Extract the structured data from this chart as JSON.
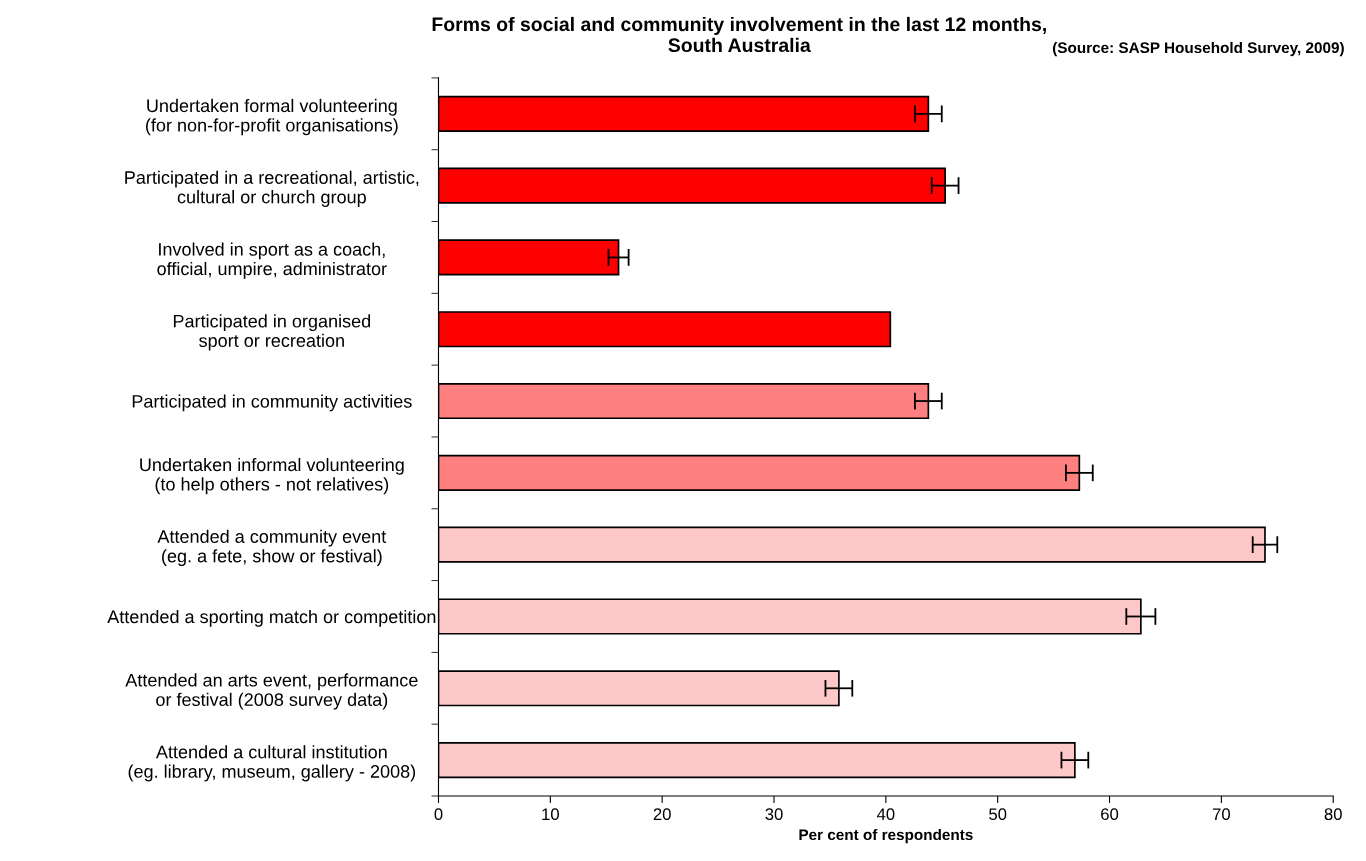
{
  "chart_data": {
    "type": "bar",
    "orientation": "horizontal",
    "title": "Forms of social and community involvement in the last 12 months,\nSouth Australia",
    "subtitle": "(Source: SASP Household Survey, 2009)",
    "xlabel": "Per cent of respondents",
    "categories": [
      "Undertaken formal volunteering\n(for non-for-profit organisations)",
      "Participated in a recreational, artistic,\ncultural or church group",
      "Involved in sport as a coach,\nofficial, umpire, administrator",
      "Participated in organised\nsport or recreation",
      "Participated in community activities",
      "Undertaken informal volunteering\n(to help others - not relatives)",
      "Attended a community event\n(eg. a fete, show or festival)",
      "Attended a sporting match or competition",
      "Attended an arts event, performance\nor festival (2008 survey data)",
      "Attended a cultural institution\n(eg. library, museum, gallery - 2008)"
    ],
    "values": [
      43.8,
      45.3,
      16.1,
      40.4,
      43.8,
      57.3,
      73.9,
      62.8,
      35.8,
      56.9
    ],
    "errors": [
      1.2,
      1.2,
      0.9,
      null,
      1.2,
      1.2,
      1.1,
      1.3,
      1.2,
      1.2
    ],
    "colors": [
      "#ff0000",
      "#ff0000",
      "#ff0000",
      "#ff0000",
      "#ff8080",
      "#ff8080",
      "#ffc8c8",
      "#ffc8c8",
      "#ffc8c8",
      "#ffc8c8"
    ],
    "xlim": [
      0,
      80
    ],
    "xticks": [
      0,
      10,
      20,
      30,
      40,
      50,
      60,
      70,
      80
    ],
    "grid": false
  }
}
